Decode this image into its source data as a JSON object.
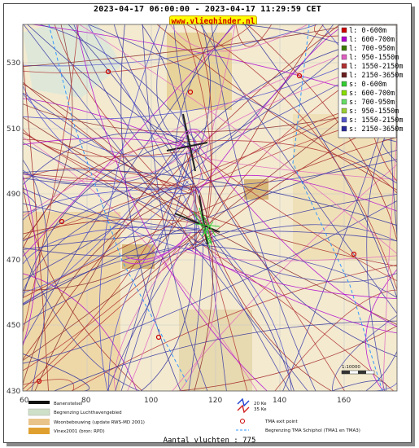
{
  "header": {
    "title": "2023-04-17 06:00:00 - 2023-04-17 11:29:59 CET",
    "brand": "www.vlieghinder.nl"
  },
  "map": {
    "y_ticks": [
      "530",
      "510",
      "490",
      "470",
      "450",
      "430"
    ],
    "x_ticks": [
      "60",
      "80",
      "100",
      "120",
      "140",
      "160"
    ],
    "scale_label": "1:10000"
  },
  "legend": {
    "items": [
      {
        "label": "l: 0-600m",
        "color": "#cc0000"
      },
      {
        "label": "l: 600-700m",
        "color": "#b000d0"
      },
      {
        "label": "l: 700-950m",
        "color": "#3a7a00"
      },
      {
        "label": "l: 950-1550m",
        "color": "#e060c0"
      },
      {
        "label": "l: 1550-2150m",
        "color": "#b03030"
      },
      {
        "label": "l: 2150-3650m",
        "color": "#6a1f1f"
      },
      {
        "label": "s: 0-600m",
        "color": "#33cc33"
      },
      {
        "label": "s: 600-700m",
        "color": "#88dd00"
      },
      {
        "label": "s: 700-950m",
        "color": "#66dd66"
      },
      {
        "label": "s: 950-1550m",
        "color": "#9acd32"
      },
      {
        "label": "s: 1550-2150m",
        "color": "#5555cc"
      },
      {
        "label": "s: 2150-3650m",
        "color": "#2a2a9a"
      }
    ]
  },
  "map_legend": {
    "items": [
      "Banenstelsel",
      "Begrenzing Luchthavengebied",
      "Woonbebouwing (update RWS-MD 2001)",
      "Vinex2001 (bron: RPD)"
    ],
    "noise_items": [
      "20 Ke",
      "35 Ke"
    ],
    "tma_items": [
      "TMA exit point",
      "Begrenzing TMA Schiphol  (TMA1 en TMA3)"
    ]
  },
  "footer": {
    "text": "Aantal vluchten : 775"
  },
  "colors": {
    "landing_track": "#a02020",
    "starting_track": "#3a3aa8",
    "accent_yellow": "#ffff00"
  }
}
